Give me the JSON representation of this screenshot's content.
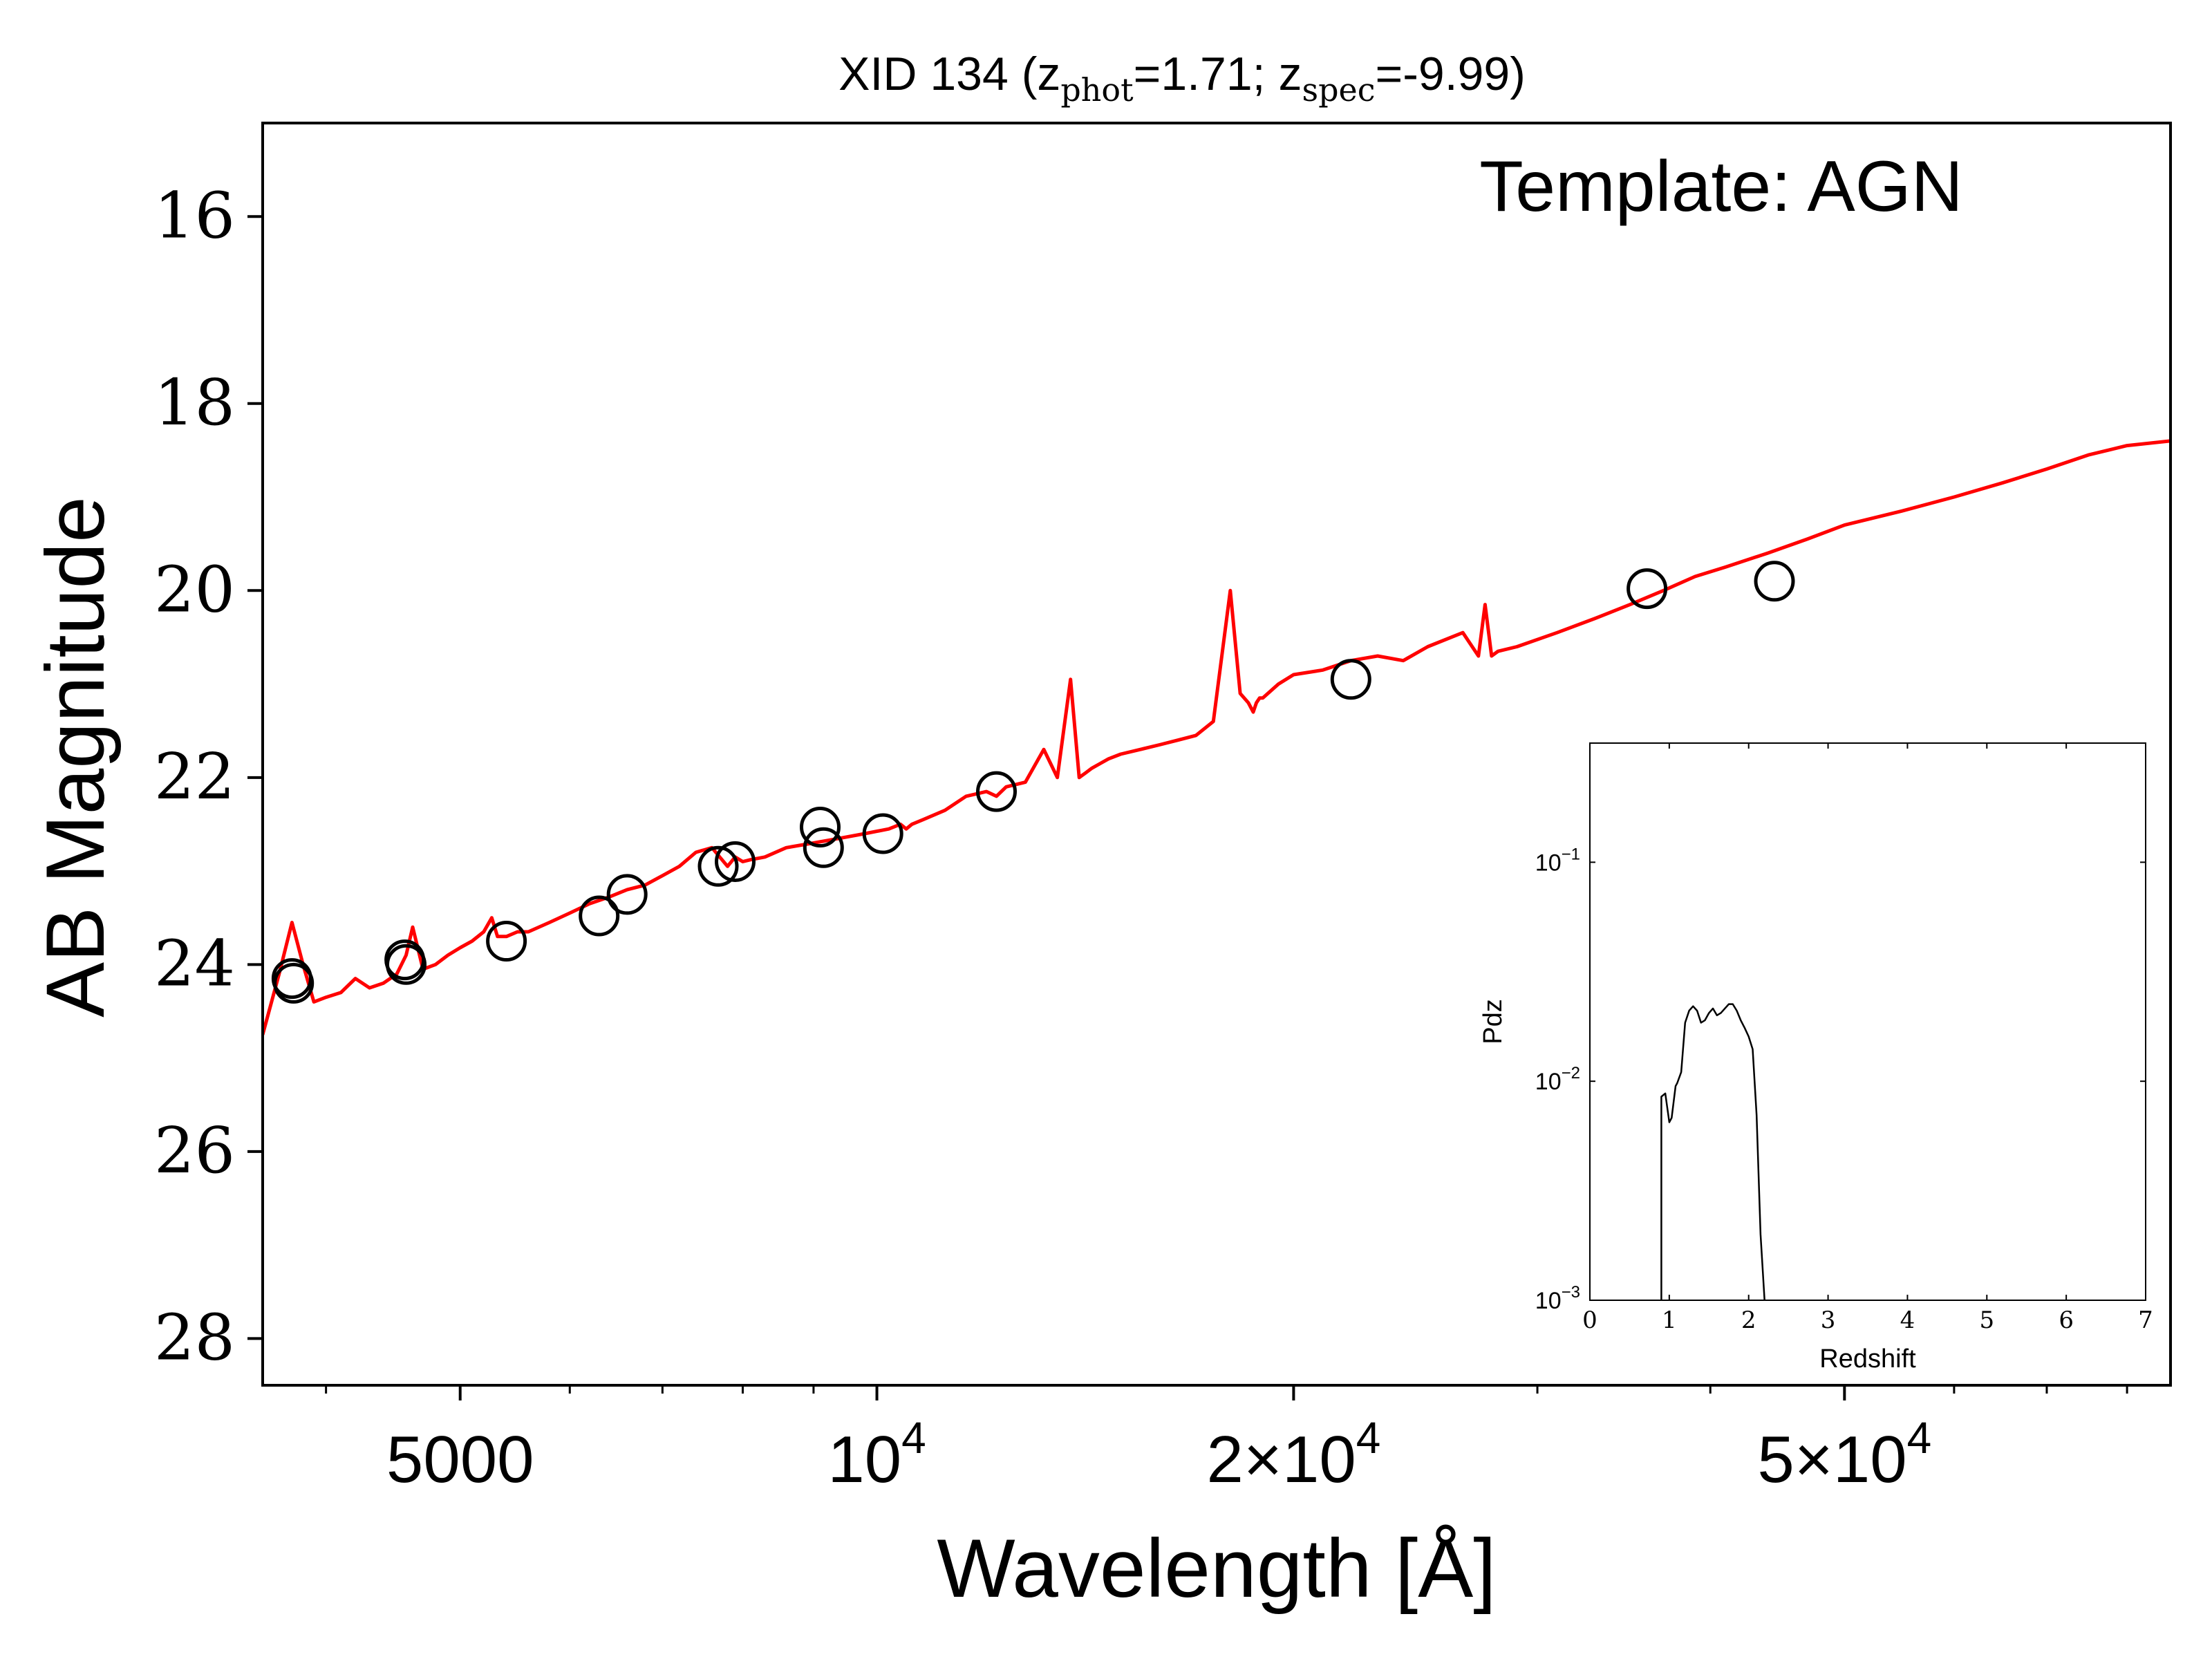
{
  "chart_data": [
    {
      "type": "scatter",
      "title": {
        "prefix": "XID 134 (z",
        "sub1": "phot",
        "mid": "=1.71; z",
        "sub2": "spec",
        "suffix": "=-9.99)"
      },
      "annotation": "Template: AGN",
      "xlabel": "Wavelength [Å]",
      "ylabel": "AB Magnitude",
      "x_scale": "log",
      "xlim": [
        3600,
        86000
      ],
      "ylim": [
        28.5,
        15.0
      ],
      "y_inverted": true,
      "yticks": [
        16,
        18,
        20,
        22,
        24,
        26,
        28
      ],
      "xticks": [
        {
          "value": 5000,
          "base": "5000",
          "exp": ""
        },
        {
          "value": 10000,
          "base": "10",
          "exp": "4"
        },
        {
          "value": 20000,
          "base": "2×10",
          "exp": "4"
        },
        {
          "value": 50000,
          "base": "5×10",
          "exp": "4"
        }
      ],
      "grid": false,
      "series": [
        {
          "kind": "line",
          "color": "#ff0000",
          "x": [
            3600,
            3700,
            3780,
            3850,
            3920,
            4000,
            4100,
            4200,
            4300,
            4400,
            4500,
            4570,
            4620,
            4700,
            4800,
            4900,
            5000,
            5100,
            5200,
            5270,
            5320,
            5400,
            5500,
            5600,
            5800,
            6000,
            6200,
            6400,
            6600,
            6800,
            7000,
            7200,
            7400,
            7600,
            7800,
            7900,
            8000,
            8100,
            8300,
            8600,
            9000,
            9400,
            9800,
            10200,
            10400,
            10500,
            10600,
            10800,
            11200,
            11600,
            12000,
            12200,
            12400,
            12800,
            13200,
            13500,
            13800,
            14000,
            14150,
            14300,
            14500,
            14700,
            15000,
            15500,
            16000,
            16500,
            17000,
            17500,
            18000,
            18300,
            18550,
            18700,
            18800,
            18900,
            19000,
            19500,
            20000,
            21000,
            22000,
            23000,
            24000,
            25000,
            26500,
            27200,
            27500,
            27800,
            28100,
            29000,
            31000,
            33000,
            35000,
            37000,
            39000,
            41000,
            44000,
            47000,
            50000,
            55000,
            60000,
            65000,
            70000,
            75000,
            80000,
            86000
          ],
          "y": [
            24.75,
            24.1,
            23.55,
            24.0,
            24.4,
            24.35,
            24.3,
            24.15,
            24.25,
            24.2,
            24.1,
            23.9,
            23.6,
            24.05,
            24.0,
            23.9,
            23.82,
            23.75,
            23.65,
            23.5,
            23.7,
            23.7,
            23.65,
            23.65,
            23.55,
            23.45,
            23.35,
            23.28,
            23.2,
            23.15,
            23.05,
            22.95,
            22.8,
            22.75,
            22.95,
            22.85,
            22.9,
            22.88,
            22.85,
            22.75,
            22.7,
            22.65,
            22.6,
            22.55,
            22.5,
            22.55,
            22.5,
            22.45,
            22.35,
            22.2,
            22.15,
            22.2,
            22.1,
            22.05,
            21.7,
            22.0,
            20.95,
            22.0,
            21.95,
            21.9,
            21.85,
            21.8,
            21.75,
            21.7,
            21.65,
            21.6,
            21.55,
            21.4,
            20.0,
            21.1,
            21.2,
            21.3,
            21.2,
            21.15,
            21.15,
            21.0,
            20.9,
            20.85,
            20.75,
            20.7,
            20.75,
            20.6,
            20.45,
            20.7,
            20.15,
            20.7,
            20.65,
            20.6,
            20.45,
            20.3,
            20.15,
            20.0,
            19.85,
            19.75,
            19.6,
            19.45,
            19.3,
            19.15,
            19.0,
            18.85,
            18.7,
            18.55,
            18.45,
            18.4
          ]
        },
        {
          "kind": "points",
          "marker": "open-circle",
          "color": "#000000",
          "x": [
            3780,
            3790,
            4560,
            4570,
            5400,
            6300,
            6600,
            7680,
            7900,
            9100,
            9150,
            10100,
            12200,
            22000,
            36000,
            44500
          ],
          "y": [
            24.15,
            24.2,
            23.95,
            24.0,
            23.75,
            23.48,
            23.25,
            22.95,
            22.9,
            22.53,
            22.75,
            22.6,
            22.15,
            20.95,
            19.98,
            19.9
          ]
        }
      ]
    },
    {
      "type": "line",
      "role": "inset",
      "xlabel": "Redshift",
      "ylabel": "Pdz",
      "y_scale": "log",
      "xlim": [
        0,
        7
      ],
      "ylim": [
        0.001,
        0.35
      ],
      "xticks": [
        0,
        1,
        2,
        3,
        4,
        5,
        6,
        7
      ],
      "yticks": [
        {
          "value": 0.1,
          "base": "10",
          "exp": "−1"
        },
        {
          "value": 0.01,
          "base": "10",
          "exp": "−2"
        },
        {
          "value": 0.001,
          "base": "10",
          "exp": "−3"
        }
      ],
      "series": [
        {
          "color": "#000000",
          "x": [
            0.9,
            0.9,
            0.95,
            1.0,
            1.03,
            1.08,
            1.1,
            1.15,
            1.2,
            1.25,
            1.3,
            1.35,
            1.4,
            1.45,
            1.5,
            1.55,
            1.6,
            1.65,
            1.7,
            1.75,
            1.8,
            1.85,
            1.9,
            1.95,
            2.0,
            2.05,
            2.1,
            2.15,
            2.2
          ],
          "y": [
            0.001,
            0.0085,
            0.0088,
            0.0065,
            0.0068,
            0.0095,
            0.0098,
            0.011,
            0.0185,
            0.021,
            0.022,
            0.021,
            0.0185,
            0.019,
            0.0205,
            0.0215,
            0.02,
            0.0205,
            0.0215,
            0.0225,
            0.0225,
            0.021,
            0.019,
            0.0175,
            0.016,
            0.014,
            0.007,
            0.002,
            0.001
          ]
        }
      ]
    }
  ]
}
